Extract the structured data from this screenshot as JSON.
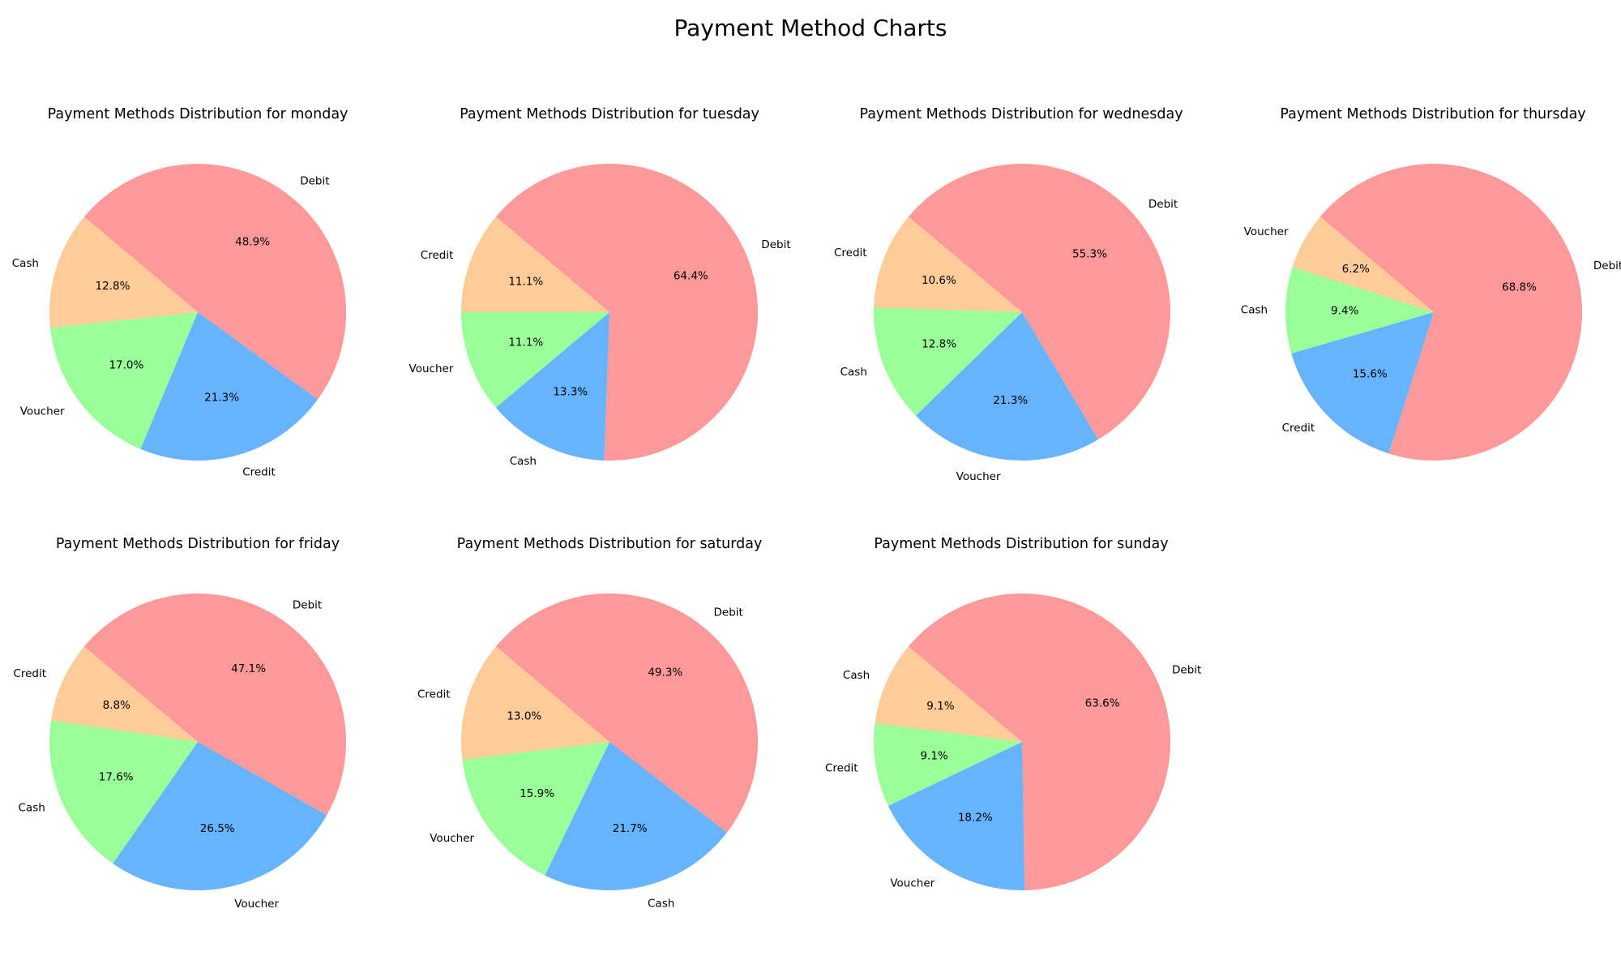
{
  "figure": {
    "title": "Payment Method Charts"
  },
  "colors": {
    "debit": "#ff9999",
    "credit_cash_voucher_blue": "#66b3ff",
    "green": "#99ff99",
    "orange": "#ffcc99"
  },
  "chart_data": [
    {
      "type": "pie",
      "title": "Payment Methods Distribution for monday",
      "labels": [
        "Debit",
        "Credit",
        "Voucher",
        "Cash"
      ],
      "values": [
        48.9,
        21.3,
        17.0,
        12.8
      ],
      "value_labels": [
        "48.9%",
        "21.3%",
        "17.0%",
        "12.8%"
      ],
      "colors": [
        "#ff9999",
        "#66b3ff",
        "#99ff99",
        "#ffcc99"
      ]
    },
    {
      "type": "pie",
      "title": "Payment Methods Distribution for tuesday",
      "labels": [
        "Debit",
        "Cash",
        "Voucher",
        "Credit"
      ],
      "values": [
        64.4,
        13.3,
        11.1,
        11.1
      ],
      "value_labels": [
        "64.4%",
        "13.3%",
        "11.1%",
        "11.1%"
      ],
      "colors": [
        "#ff9999",
        "#66b3ff",
        "#99ff99",
        "#ffcc99"
      ]
    },
    {
      "type": "pie",
      "title": "Payment Methods Distribution for wednesday",
      "labels": [
        "Debit",
        "Voucher",
        "Cash",
        "Credit"
      ],
      "values": [
        55.3,
        21.3,
        12.8,
        10.6
      ],
      "value_labels": [
        "55.3%",
        "21.3%",
        "12.8%",
        "10.6%"
      ],
      "colors": [
        "#ff9999",
        "#66b3ff",
        "#99ff99",
        "#ffcc99"
      ]
    },
    {
      "type": "pie",
      "title": "Payment Methods Distribution for thursday",
      "labels": [
        "Debit",
        "Credit",
        "Cash",
        "Voucher"
      ],
      "values": [
        68.8,
        15.6,
        9.4,
        6.2
      ],
      "value_labels": [
        "68.8%",
        "15.6%",
        "9.4%",
        "6.2%"
      ],
      "colors": [
        "#ff9999",
        "#66b3ff",
        "#99ff99",
        "#ffcc99"
      ]
    },
    {
      "type": "pie",
      "title": "Payment Methods Distribution for friday",
      "labels": [
        "Debit",
        "Voucher",
        "Cash",
        "Credit"
      ],
      "values": [
        47.1,
        26.5,
        17.6,
        8.8
      ],
      "value_labels": [
        "47.1%",
        "26.5%",
        "17.6%",
        "8.8%"
      ],
      "colors": [
        "#ff9999",
        "#66b3ff",
        "#99ff99",
        "#ffcc99"
      ]
    },
    {
      "type": "pie",
      "title": "Payment Methods Distribution for saturday",
      "labels": [
        "Debit",
        "Cash",
        "Voucher",
        "Credit"
      ],
      "values": [
        49.3,
        21.7,
        15.9,
        13.0
      ],
      "value_labels": [
        "49.3%",
        "21.7%",
        "15.9%",
        "13.0%"
      ],
      "colors": [
        "#ff9999",
        "#66b3ff",
        "#99ff99",
        "#ffcc99"
      ]
    },
    {
      "type": "pie",
      "title": "Payment Methods Distribution for sunday",
      "labels": [
        "Debit",
        "Voucher",
        "Credit",
        "Cash"
      ],
      "values": [
        63.6,
        18.2,
        9.1,
        9.1
      ],
      "value_labels": [
        "63.6%",
        "18.2%",
        "9.1%",
        "9.1%"
      ],
      "colors": [
        "#ff9999",
        "#66b3ff",
        "#99ff99",
        "#ffcc99"
      ]
    }
  ]
}
